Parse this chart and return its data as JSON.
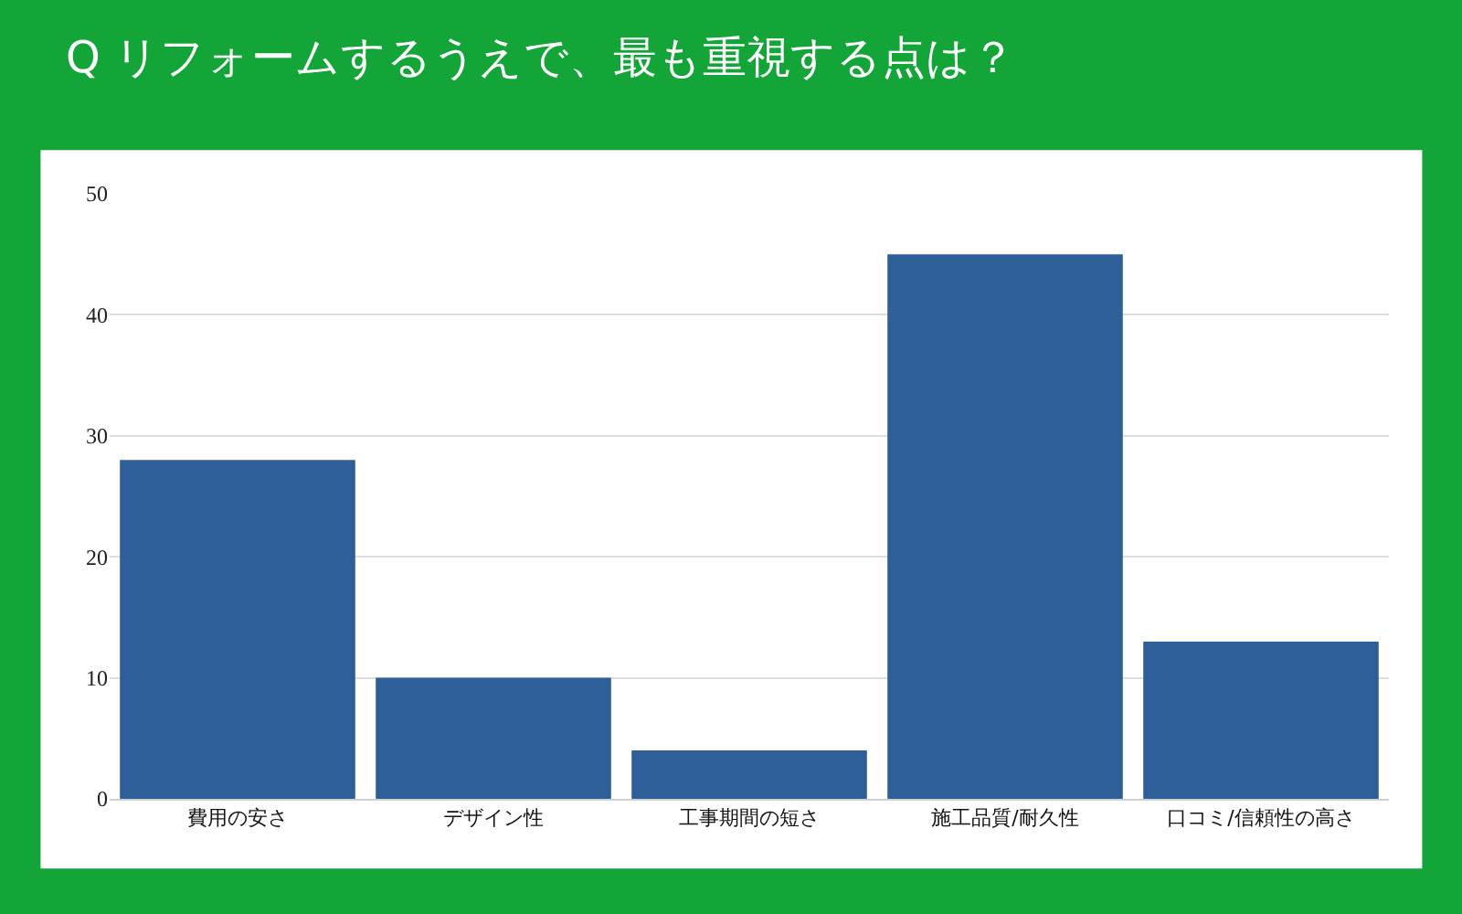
{
  "chart_data": {
    "type": "bar",
    "title": "Q リフォームするうえで、最も重視する点は？",
    "categories": [
      "費用の安さ",
      "デザイン性",
      "工事期間の短さ",
      "施工品質/耐久性",
      "口コミ/信頼性の高さ"
    ],
    "values": [
      28,
      10,
      4,
      45,
      13
    ],
    "color": "#2f5f98",
    "ylim": [
      0,
      50
    ],
    "yticks": [
      0,
      10,
      20,
      30,
      40,
      50
    ],
    "grid": "y"
  }
}
